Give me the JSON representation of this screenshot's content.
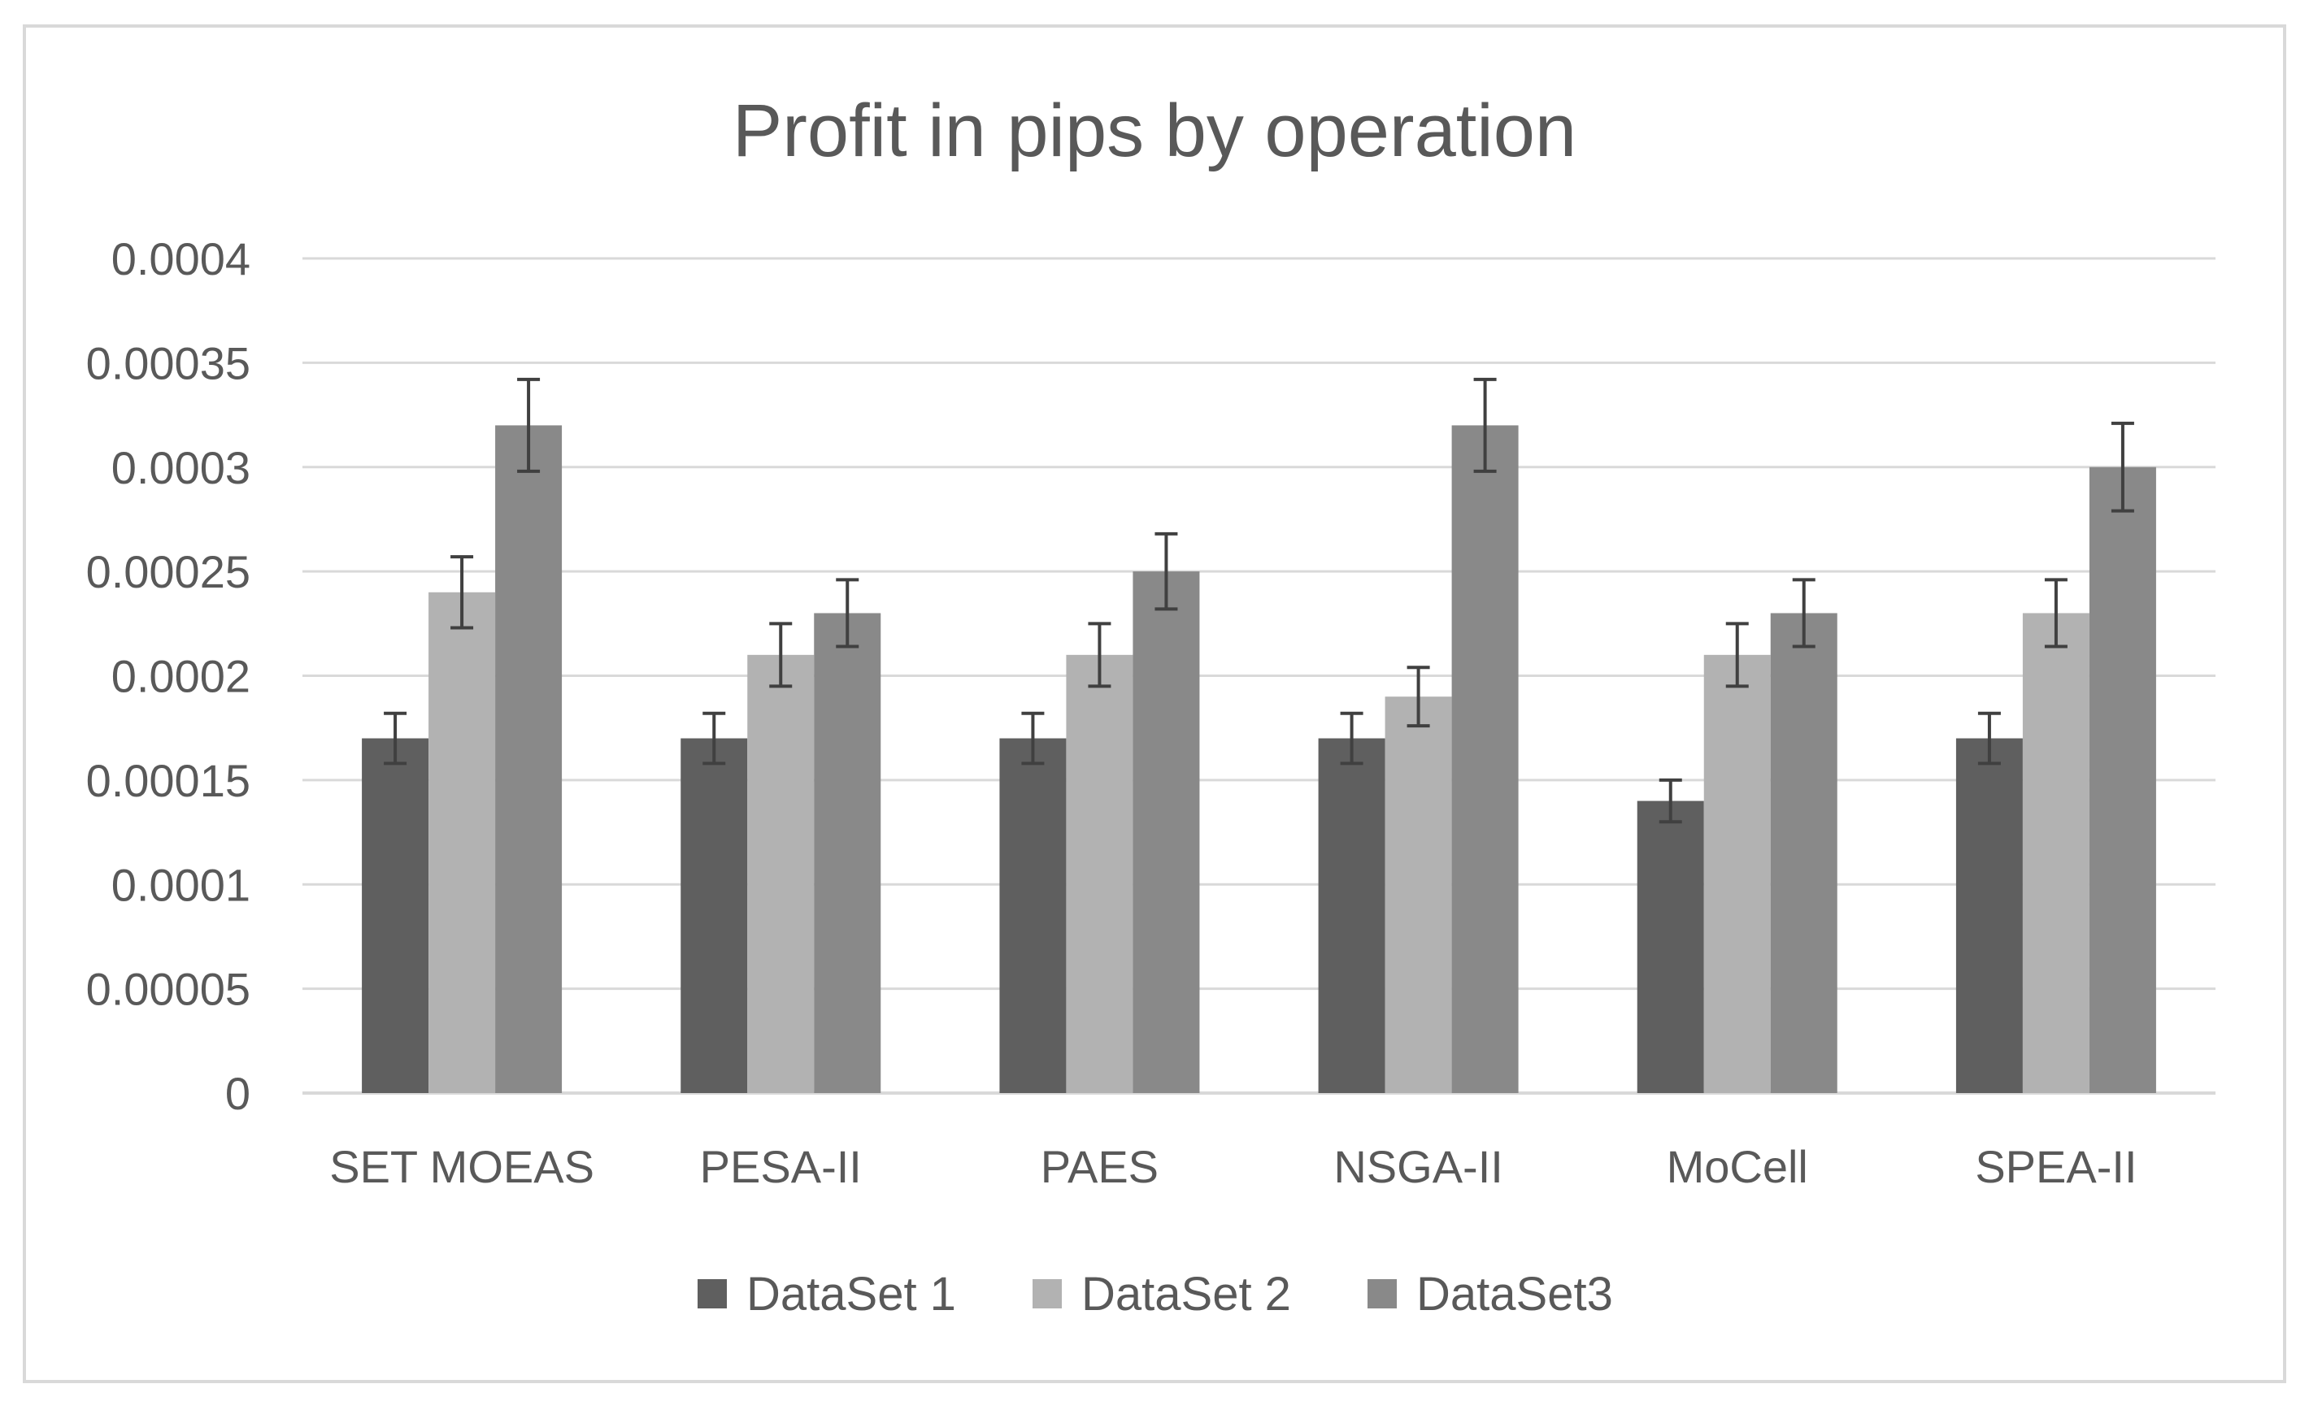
{
  "chart_data": {
    "type": "bar",
    "title": "Profit in pips by operation",
    "xlabel": "",
    "ylabel": "",
    "categories": [
      "SET MOEAS",
      "PESA-II",
      "PAES",
      "NSGA-II",
      "MoCell",
      "SPEA-II"
    ],
    "series": [
      {
        "name": "DataSet 1",
        "color": "#5f5f5f",
        "values": [
          0.00017,
          0.00017,
          0.00017,
          0.00017,
          0.00014,
          0.00017
        ],
        "errors": [
          1.2e-05,
          1.2e-05,
          1.2e-05,
          1.2e-05,
          1e-05,
          1.2e-05
        ]
      },
      {
        "name": "DataSet 2",
        "color": "#b2b2b2",
        "values": [
          0.00024,
          0.00021,
          0.00021,
          0.00019,
          0.00021,
          0.00023
        ],
        "errors": [
          1.7e-05,
          1.5e-05,
          1.5e-05,
          1.4e-05,
          1.5e-05,
          1.6e-05
        ]
      },
      {
        "name": "DataSet3",
        "color": "#898989",
        "values": [
          0.00032,
          0.00023,
          0.00025,
          0.00032,
          0.00023,
          0.0003
        ],
        "errors": [
          2.2e-05,
          1.6e-05,
          1.8e-05,
          2.2e-05,
          1.6e-05,
          2.1e-05
        ]
      }
    ],
    "ylim": [
      0,
      0.0004
    ],
    "yticks": [
      "0",
      "0.00005",
      "0.0001",
      "0.00015",
      "0.0002",
      "0.00025",
      "0.0003",
      "0.00035",
      "0.0004"
    ],
    "grid": true,
    "legend": "bottom",
    "error_bars": true,
    "gridline_color": "#d9d9d9",
    "axis_color": "#d9d9d9",
    "errorbar_color": "#404040"
  }
}
